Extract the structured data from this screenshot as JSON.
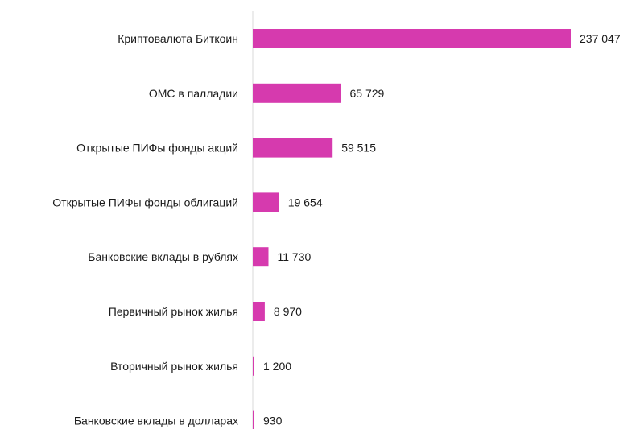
{
  "chart_data": {
    "type": "bar",
    "orientation": "horizontal",
    "categories": [
      "Криптовалюта  Биткоин",
      "ОМС в палладии",
      "Открытые  ПИФы фонды  акций",
      "Открытые  ПИФы фонды  облигаций",
      "Банковские вклады в рублях",
      "Первичный  рынок жилья",
      "Вторичный  рынок жилья",
      "Банковские вклады в долларах"
    ],
    "values": [
      237047,
      65729,
      59515,
      19654,
      11730,
      8970,
      1200,
      930
    ],
    "value_labels": [
      "237 047",
      "65 729",
      "59 515",
      "19 654",
      "11 730",
      "8 970",
      "1 200",
      "930"
    ],
    "bar_color": "#d63aae",
    "axis_color": "#d9d9d9",
    "xlim": [
      0,
      237047
    ],
    "grid": false,
    "legend": "none"
  }
}
